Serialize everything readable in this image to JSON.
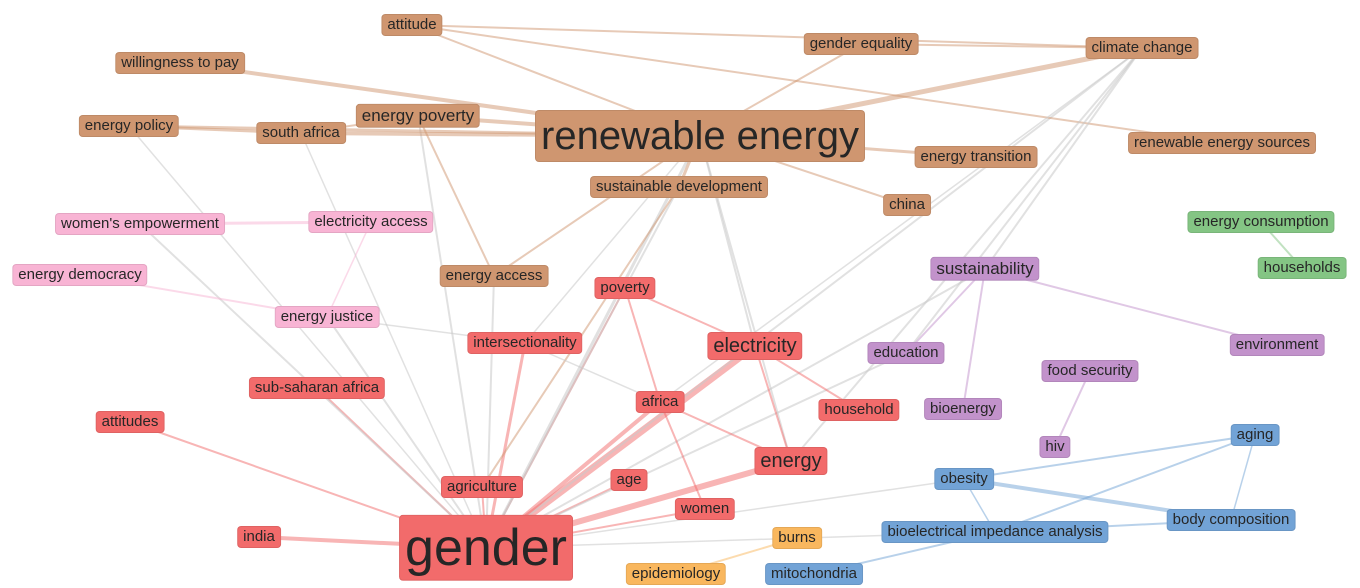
{
  "nodes": [
    {
      "label": "attitude",
      "color": "#cf9670"
    },
    {
      "label": "willingness to pay",
      "color": "#cf9670"
    },
    {
      "label": "energy policy",
      "color": "#cf9670"
    },
    {
      "label": "south africa",
      "color": "#cf9670"
    },
    {
      "label": "energy poverty",
      "color": "#cf9670"
    },
    {
      "label": "renewable energy",
      "color": "#cf9670"
    },
    {
      "label": "gender equality",
      "color": "#cf9670"
    },
    {
      "label": "climate change",
      "color": "#cf9670"
    },
    {
      "label": "energy transition",
      "color": "#cf9670"
    },
    {
      "label": "renewable energy sources",
      "color": "#cf9670"
    },
    {
      "label": "sustainable development",
      "color": "#cf9670"
    },
    {
      "label": "china",
      "color": "#cf9670"
    },
    {
      "label": "energy access",
      "color": "#cf9670"
    },
    {
      "label": "women's empowerment",
      "color": "#f8b4d4"
    },
    {
      "label": "electricity access",
      "color": "#f8b4d4"
    },
    {
      "label": "energy democracy",
      "color": "#f8b4d4"
    },
    {
      "label": "energy justice",
      "color": "#f8b4d4"
    },
    {
      "label": "energy consumption",
      "color": "#84c584"
    },
    {
      "label": "households",
      "color": "#84c584"
    },
    {
      "label": "sustainability",
      "color": "#c292cb"
    },
    {
      "label": "environment",
      "color": "#c292cb"
    },
    {
      "label": "education",
      "color": "#c292cb"
    },
    {
      "label": "food security",
      "color": "#c292cb"
    },
    {
      "label": "bioenergy",
      "color": "#c292cb"
    },
    {
      "label": "hiv",
      "color": "#c292cb"
    },
    {
      "label": "poverty",
      "color": "#f26b6b"
    },
    {
      "label": "intersectionality",
      "color": "#f26b6b"
    },
    {
      "label": "electricity",
      "color": "#f26b6b"
    },
    {
      "label": "sub-saharan africa",
      "color": "#f26b6b"
    },
    {
      "label": "africa",
      "color": "#f26b6b"
    },
    {
      "label": "household",
      "color": "#f26b6b"
    },
    {
      "label": "attitudes",
      "color": "#f26b6b"
    },
    {
      "label": "energy",
      "color": "#f26b6b"
    },
    {
      "label": "agriculture",
      "color": "#f26b6b"
    },
    {
      "label": "age",
      "color": "#f26b6b"
    },
    {
      "label": "women",
      "color": "#f26b6b"
    },
    {
      "label": "india",
      "color": "#f26b6b"
    },
    {
      "label": "gender",
      "color": "#f26b6b"
    },
    {
      "label": "burns",
      "color": "#f9b75e"
    },
    {
      "label": "epidemiology",
      "color": "#f9b75e"
    },
    {
      "label": "aging",
      "color": "#72a3d6"
    },
    {
      "label": "obesity",
      "color": "#72a3d6"
    },
    {
      "label": "body composition",
      "color": "#72a3d6"
    },
    {
      "label": "bioelectrical impedance analysis",
      "color": "#72a3d6"
    },
    {
      "label": "mitochondria",
      "color": "#72a3d6"
    }
  ]
}
